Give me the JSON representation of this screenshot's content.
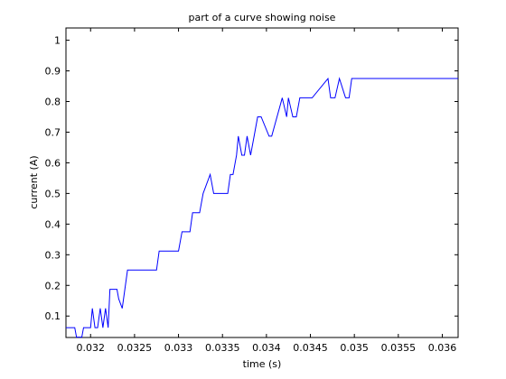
{
  "chart_data": {
    "type": "line",
    "title": "part of a curve showing noise",
    "xlabel": "time (s)",
    "ylabel": "current (A)",
    "xlim": [
      0.03172,
      0.03618
    ],
    "ylim": [
      0.03,
      1.04
    ],
    "x_ticks": [
      0.032,
      0.0325,
      0.033,
      0.0335,
      0.034,
      0.0345,
      0.035,
      0.0355,
      0.036
    ],
    "x_tick_labels": [
      "0.032",
      "0.0325",
      "0.033",
      "0.0335",
      "0.034",
      "0.0345",
      "0.035",
      "0.0355",
      "0.036"
    ],
    "y_ticks": [
      0.1,
      0.2,
      0.3,
      0.4,
      0.5,
      0.6,
      0.7,
      0.8,
      0.9,
      1
    ],
    "y_tick_labels": [
      "0.1",
      "0.2",
      "0.3",
      "0.4",
      "0.5",
      "0.6",
      "0.7",
      "0.8",
      "0.9",
      "1"
    ],
    "grid": false,
    "series": [
      {
        "color": "#0000ff",
        "x": [
          0.03172,
          0.03182,
          0.03184,
          0.0319,
          0.03192,
          0.032,
          0.03202,
          0.03205,
          0.03208,
          0.03211,
          0.03214,
          0.03217,
          0.0322,
          0.03222,
          0.0323,
          0.03232,
          0.03236,
          0.03242,
          0.03248,
          0.03275,
          0.03278,
          0.033,
          0.03304,
          0.03313,
          0.03316,
          0.03324,
          0.03328,
          0.03336,
          0.0334,
          0.03356,
          0.03359,
          0.03362,
          0.03366,
          0.03368,
          0.03372,
          0.03375,
          0.03378,
          0.03382,
          0.03386,
          0.0339,
          0.03394,
          0.03403,
          0.03406,
          0.03418,
          0.03423,
          0.03425,
          0.0343,
          0.03434,
          0.03438,
          0.03442,
          0.03449,
          0.03452,
          0.0347,
          0.03473,
          0.03478,
          0.03483,
          0.0349,
          0.03494,
          0.03497,
          0.03502,
          0.03507,
          0.03512,
          0.03618
        ],
        "y": [
          0.062,
          0.062,
          0.031,
          0.031,
          0.062,
          0.062,
          0.125,
          0.062,
          0.062,
          0.125,
          0.062,
          0.125,
          0.062,
          0.187,
          0.187,
          0.156,
          0.125,
          0.25,
          0.25,
          0.25,
          0.312,
          0.312,
          0.375,
          0.375,
          0.437,
          0.437,
          0.5,
          0.562,
          0.5,
          0.5,
          0.562,
          0.562,
          0.625,
          0.687,
          0.625,
          0.625,
          0.687,
          0.625,
          0.687,
          0.75,
          0.75,
          0.687,
          0.687,
          0.812,
          0.75,
          0.812,
          0.75,
          0.75,
          0.812,
          0.812,
          0.812,
          0.812,
          0.875,
          0.812,
          0.812,
          0.875,
          0.812,
          0.812,
          0.875,
          0.875,
          0.875,
          0.875,
          0.875
        ]
      }
    ]
  }
}
